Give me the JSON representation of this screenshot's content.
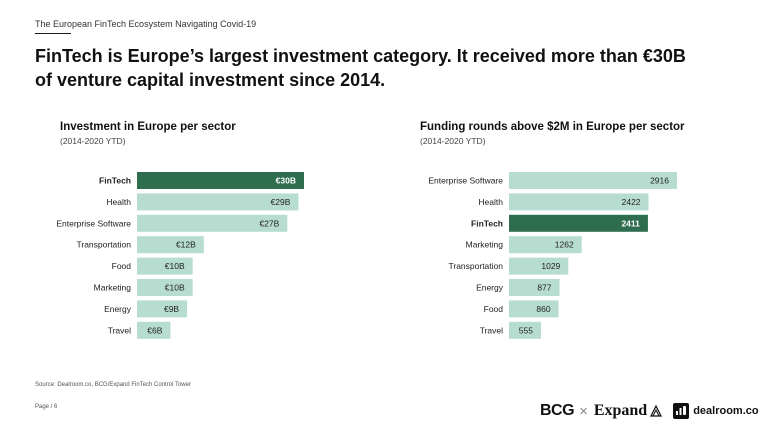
{
  "header": {
    "doc_title": "The European FinTech Ecosystem Navigating Covid-19",
    "headline_line1": "FinTech is Europe’s largest investment category. It received more than €30B",
    "headline_line2": "of venture capital investment since 2014."
  },
  "colors": {
    "highlight": "#2f6d4f",
    "bar": "#b7ddd0"
  },
  "chart_data": [
    {
      "type": "bar",
      "orientation": "horizontal",
      "title": "Investment in Europe per sector",
      "subtitle": "(2014-2020 YTD)",
      "categories": [
        "FinTech",
        "Health",
        "Enterprise Software",
        "Transportation",
        "Food",
        "Marketing",
        "Energy",
        "Travel"
      ],
      "values": [
        30,
        29,
        27,
        12,
        10,
        10,
        9,
        6
      ],
      "value_labels": [
        "€30B",
        "€29B",
        "€27B",
        "€12B",
        "€10B",
        "€10B",
        "€9B",
        "€6B"
      ],
      "unit": "€B",
      "highlight": "FinTech",
      "xlim": [
        0,
        30
      ]
    },
    {
      "type": "bar",
      "orientation": "horizontal",
      "title": "Funding rounds above $2M in Europe per sector",
      "subtitle": "(2014-2020 YTD)",
      "categories": [
        "Enterprise Software",
        "Health",
        "FinTech",
        "Marketing",
        "Transportation",
        "Energy",
        "Food",
        "Travel"
      ],
      "values": [
        2916,
        2422,
        2411,
        1262,
        1029,
        877,
        860,
        555
      ],
      "value_labels": [
        "2916",
        "2422",
        "2411",
        "1262",
        "1029",
        "877",
        "860",
        "555"
      ],
      "highlight": "FinTech",
      "xlim": [
        0,
        2916
      ]
    }
  ],
  "footer": {
    "source": "Source: Dealroom.co, BCG/Expand FinTech Control Tower",
    "page": "Page / 6",
    "logo_bcg": "BCG",
    "logo_times": "×",
    "logo_expand": "Expand",
    "logo_dealroom": "dealroom.co"
  }
}
